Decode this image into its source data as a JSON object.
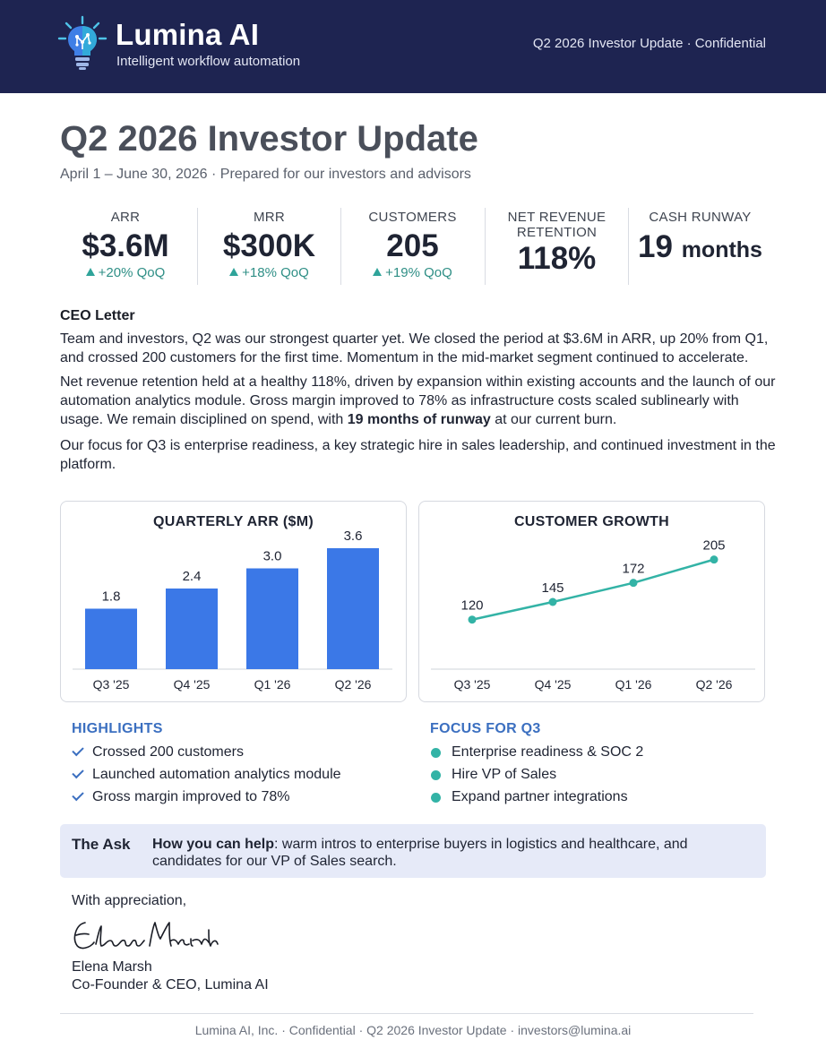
{
  "header": {
    "brand_name": "Lumina AI",
    "tagline": "Intelligent workflow automation",
    "right_text": "Q2 2026 Investor Update · Confidential",
    "logo_icon": "lightbulb-circuit-icon"
  },
  "title": "Q2 2026 Investor Update",
  "subtitle": "April 1 – June 30, 2026 · Prepared for our investors and advisors",
  "kpis": [
    {
      "label": "ARR",
      "value": "$3.6M",
      "change": "+20% QoQ",
      "trend": "up"
    },
    {
      "label": "MRR",
      "value": "$300K",
      "change": "+18% QoQ",
      "trend": "up"
    },
    {
      "label": "CUSTOMERS",
      "value": "205",
      "change": "+19% QoQ",
      "trend": "up"
    },
    {
      "label_line1": "NET REVENUE",
      "label_line2": "RETENTION",
      "value": "118%"
    },
    {
      "label": "CASH RUNWAY",
      "value": "19",
      "unit": "months"
    }
  ],
  "letter": {
    "title": "CEO Letter",
    "p1": "Team and investors, Q2 was our strongest quarter yet. We closed the period at $3.6M in ARR, up 20% from Q1, and crossed 200 customers for the first time. Momentum in the mid-market segment continued to accelerate.",
    "p2_start": "Net revenue retention held at a healthy 118%, driven by expansion within existing accounts and the launch of our automation analytics module. Gross margin improved to 78% as infrastructure costs scaled sublinearly with usage. We remain disciplined on spend, with ",
    "p2_bold": "19 months of runway",
    "p2_end": " at our current burn.",
    "p3": "Our focus for Q3 is enterprise readiness, a key strategic hire in sales leadership, and continued investment in the platform."
  },
  "chart_data": [
    {
      "type": "bar",
      "title": "QUARTERLY ARR ($M)",
      "categories": [
        "Q3 '25",
        "Q4 '25",
        "Q1 '26",
        "Q2 '26"
      ],
      "values": [
        1.8,
        2.4,
        3.0,
        3.6
      ],
      "value_labels": [
        "1.8",
        "2.4",
        "3.0",
        "3.6"
      ],
      "color": "#3b78e7",
      "ylim": [
        0,
        4
      ]
    },
    {
      "type": "line",
      "title": "CUSTOMER GROWTH",
      "categories": [
        "Q3 '25",
        "Q4 '25",
        "Q1 '26",
        "Q2 '26"
      ],
      "values": [
        120,
        145,
        172,
        205
      ],
      "value_labels": [
        "120",
        "145",
        "172",
        "205"
      ],
      "color": "#33b3a6",
      "ylim": [
        50,
        240
      ]
    }
  ],
  "highlights": {
    "heading": "HIGHLIGHTS",
    "items": [
      "Crossed 200 customers",
      "Launched automation analytics module",
      "Gross margin improved to 78%"
    ]
  },
  "focus": {
    "heading": "FOCUS FOR Q3",
    "items": [
      "Enterprise readiness & SOC 2",
      "Hire VP of Sales",
      "Expand partner integrations"
    ]
  },
  "ask": {
    "label": "The Ask",
    "bold": "How you can help",
    "text": ": warm intros to enterprise buyers in logistics and healthcare, and candidates for our VP of Sales search."
  },
  "closing": {
    "salutation": "With appreciation,",
    "signature": "Elena Marsh",
    "name": "Elena Marsh",
    "title": "Co-Founder & CEO, Lumina AI"
  },
  "footer": "Lumina AI, Inc. · Confidential · Q2 2026 Investor Update · investors@lumina.ai"
}
